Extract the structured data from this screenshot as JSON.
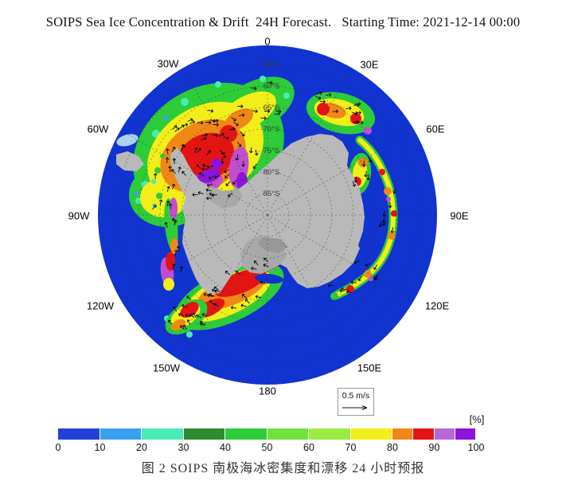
{
  "figure": {
    "title": "SOIPS Sea Ice Concentration & Drift  24H Forecast.   Starting Time: 2021-12-14 00:00",
    "caption": "图 2 SOIPS 南极海冰密集度和漂移 24 小时预报"
  },
  "map": {
    "longitude_labels": [
      "0",
      "30E",
      "60E",
      "90E",
      "120E",
      "150E",
      "180",
      "150W",
      "120W",
      "90W",
      "60W",
      "30W"
    ],
    "latitude_labels": [
      "55°S",
      "60°S",
      "65°S",
      "70°S",
      "75°S",
      "80°S",
      "85°S"
    ],
    "vector_scale_label": "0.5 m/s"
  },
  "colorbar": {
    "unit_label": "[%]",
    "ticks": [
      "0",
      "10",
      "20",
      "30",
      "40",
      "50",
      "60",
      "70",
      "80",
      "90",
      "100"
    ],
    "segments": [
      {
        "from": 0,
        "to": 10,
        "color": "#2240d8"
      },
      {
        "from": 10,
        "to": 20,
        "color": "#3b9ff0"
      },
      {
        "from": 20,
        "to": 30,
        "color": "#48ecb4"
      },
      {
        "from": 30,
        "to": 40,
        "color": "#2f8b2f"
      },
      {
        "from": 40,
        "to": 50,
        "color": "#2ecc38"
      },
      {
        "from": 50,
        "to": 60,
        "color": "#70e33c"
      },
      {
        "from": 60,
        "to": 70,
        "color": "#9bec42"
      },
      {
        "from": 70,
        "to": 80,
        "color": "#f2ee1a"
      },
      {
        "from": 80,
        "to": 85,
        "color": "#f08818"
      },
      {
        "from": 85,
        "to": 90,
        "color": "#e41414"
      },
      {
        "from": 90,
        "to": 95,
        "color": "#b768d4"
      },
      {
        "from": 95,
        "to": 100,
        "color": "#8c14dc"
      }
    ]
  },
  "colors": {
    "ocean": "#1133d0",
    "land": "#b9b9b9",
    "ice_shelf": "#a9a9a9",
    "background": "#ffffff"
  },
  "chart_data": {
    "type": "heatmap",
    "title": "SOIPS Sea Ice Concentration & Drift 24H Forecast.",
    "starting_time": "2021-12-14 00:00",
    "variable": "Antarctic sea ice concentration (shaded) with ice drift vectors (arrows)",
    "unit": "%",
    "projection": "south polar stereographic",
    "colorbar_boundaries": [
      0,
      10,
      20,
      30,
      40,
      50,
      60,
      70,
      80,
      85,
      90,
      95,
      100
    ],
    "colorbar_colors": [
      "#2240d8",
      "#3b9ff0",
      "#48ecb4",
      "#2f8b2f",
      "#2ecc38",
      "#70e33c",
      "#9bec42",
      "#f2ee1a",
      "#f08818",
      "#e41414",
      "#b768d4",
      "#8c14dc"
    ],
    "colorbar_ticks": [
      0,
      10,
      20,
      30,
      40,
      50,
      60,
      70,
      80,
      90,
      100
    ],
    "longitude_labels": [
      "0",
      "30E",
      "60E",
      "90E",
      "120E",
      "150E",
      "180",
      "150W",
      "120W",
      "90W",
      "60W",
      "30W"
    ],
    "latitude_circles_deg_S": [
      55,
      60,
      65,
      70,
      75,
      80,
      85
    ],
    "vector_reference": {
      "value": 0.5,
      "unit": "m/s"
    },
    "legend_position": "bottom"
  }
}
